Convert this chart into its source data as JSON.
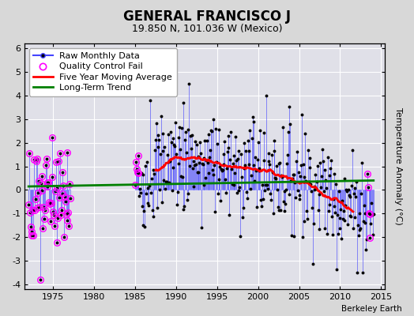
{
  "title": "GENERAL FRANCISCO J",
  "subtitle": "19.850 N, 101.036 W (Mexico)",
  "ylabel": "Temperature Anomaly (°C)",
  "credit": "Berkeley Earth",
  "xlim": [
    1971.5,
    2015.5
  ],
  "ylim": [
    -4.2,
    6.2
  ],
  "yticks": [
    -4,
    -3,
    -2,
    -1,
    0,
    1,
    2,
    3,
    4,
    5,
    6
  ],
  "xticks": [
    1975,
    1980,
    1985,
    1990,
    1995,
    2000,
    2005,
    2010,
    2015
  ],
  "bg_color": "#d8d8d8",
  "plot_bg_color": "#e0e0e8",
  "grid_color": "white",
  "raw_color": "#4444ff",
  "dot_color": "black",
  "qc_color": "magenta",
  "moving_avg_color": "red",
  "trend_color": "green",
  "legend_fontsize": 8,
  "title_fontsize": 12,
  "subtitle_fontsize": 9
}
